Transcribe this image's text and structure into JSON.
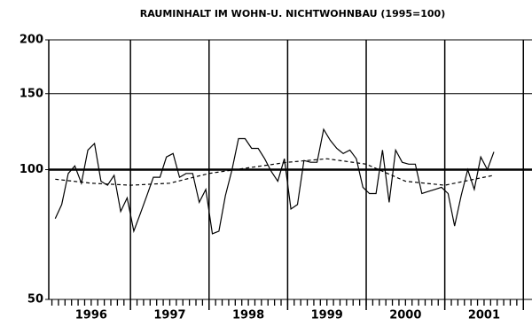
{
  "chart_data": {
    "type": "line",
    "title": "RAUMINHALT IM WOHN-U. NICHTWOHNBAU (1995=100)",
    "log_y": true,
    "ylim": [
      50,
      200
    ],
    "yticks": [
      50,
      100,
      150,
      200
    ],
    "xlim": [
      1995.96,
      2002.11
    ],
    "xticks": [
      {
        "value": 1996.5,
        "label": "1996"
      },
      {
        "value": 1997.5,
        "label": "1997"
      },
      {
        "value": 1998.5,
        "label": "1998"
      },
      {
        "value": 1999.5,
        "label": "1999"
      },
      {
        "value": 2000.5,
        "label": "2000"
      },
      {
        "value": 2001.5,
        "label": "2001"
      }
    ],
    "vlines": [
      1997,
      1998,
      1999,
      2000,
      2001,
      2002
    ],
    "refline": 100,
    "series": [
      {
        "style": "solid",
        "color": "#000000",
        "x": [
          1996.042,
          1996.125,
          1996.208,
          1996.292,
          1996.375,
          1996.458,
          1996.542,
          1996.625,
          1996.708,
          1996.792,
          1996.875,
          1996.958,
          1997.042,
          1997.125,
          1997.208,
          1997.292,
          1997.375,
          1997.458,
          1997.542,
          1997.625,
          1997.708,
          1997.792,
          1997.875,
          1997.958,
          1998.042,
          1998.125,
          1998.208,
          1998.292,
          1998.375,
          1998.458,
          1998.542,
          1998.625,
          1998.708,
          1998.792,
          1998.875,
          1998.958,
          1999.042,
          1999.125,
          1999.208,
          1999.292,
          1999.375,
          1999.458,
          1999.542,
          1999.625,
          1999.708,
          1999.792,
          1999.875,
          1999.958,
          2000.042,
          2000.125,
          2000.208,
          2000.292,
          2000.375,
          2000.458,
          2000.542,
          2000.625,
          2000.708,
          2000.792,
          2000.875,
          2000.958,
          2001.042,
          2001.125,
          2001.208,
          2001.292,
          2001.375,
          2001.458,
          2001.542,
          2001.625
        ],
        "values": [
          77,
          83,
          98,
          102,
          93,
          111,
          115,
          94,
          92,
          97,
          80,
          86,
          72,
          79,
          87,
          96,
          96,
          107,
          109,
          96,
          98,
          98,
          84,
          90,
          71,
          72,
          87,
          100,
          118,
          118,
          112,
          112,
          106,
          99,
          94,
          106,
          81,
          83,
          105,
          104,
          104,
          124,
          117,
          112,
          109,
          111,
          106,
          91,
          88,
          88,
          111,
          84,
          111,
          104,
          103,
          103,
          88,
          89,
          90,
          91,
          88,
          74,
          87,
          100,
          90,
          107,
          100,
          110
        ]
      },
      {
        "style": "dashed",
        "color": "#000000",
        "x": [
          1996.042,
          1996.5,
          1997.0,
          1997.5,
          1998.0,
          1998.5,
          1999.0,
          1999.5,
          2000.0,
          2000.5,
          2001.0,
          2001.5,
          2001.625
        ],
        "values": [
          95,
          93,
          92,
          93,
          98,
          101,
          104,
          106,
          103,
          94,
          92,
          96,
          97
        ]
      }
    ]
  }
}
